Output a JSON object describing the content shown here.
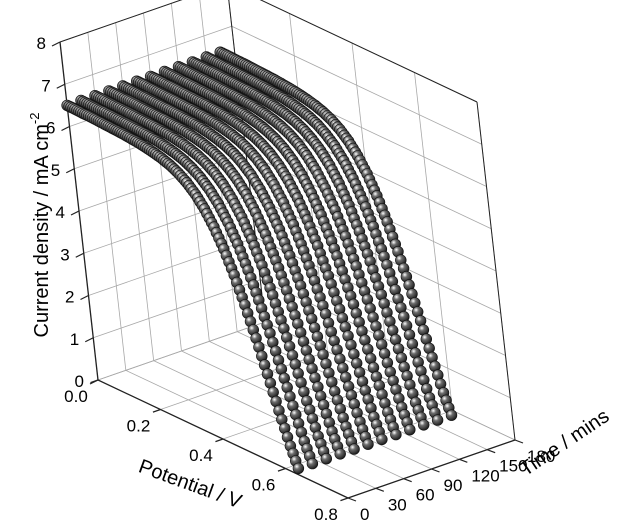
{
  "chart_data": {
    "type": "line",
    "title": "",
    "xlabel": "Potential / V",
    "ylabel": "Time / mins",
    "zlabel": "Current density / mA cm-2",
    "xlabel_parts": [
      "Potential / V"
    ],
    "ylabel_parts": [
      "Time / mins"
    ],
    "zlabel_parts": [
      "Current density / mA cm",
      "-2"
    ],
    "xlim": [
      0.0,
      0.8
    ],
    "ylim": [
      0,
      180
    ],
    "zlim": [
      0,
      8
    ],
    "x_ticks": [
      "0.0",
      "0.2",
      "0.4",
      "0.6",
      "0.8"
    ],
    "y_ticks": [
      "0",
      "30",
      "60",
      "90",
      "120",
      "150",
      "180"
    ],
    "z_ticks": [
      "0",
      "1",
      "2",
      "3",
      "4",
      "5",
      "6",
      "7",
      "8"
    ],
    "grid": true,
    "marker": "sphere",
    "marker_color": "#1a1a1a",
    "series_times": [
      0,
      15,
      30,
      45,
      60,
      75,
      90,
      105,
      120,
      135,
      150,
      165
    ],
    "potential": [
      0.0,
      0.025,
      0.05,
      0.075,
      0.1,
      0.125,
      0.15,
      0.175,
      0.2,
      0.225,
      0.25,
      0.275,
      0.3,
      0.325,
      0.35,
      0.375,
      0.4,
      0.425,
      0.45,
      0.475,
      0.5,
      0.525,
      0.55,
      0.575,
      0.6,
      0.625,
      0.65,
      0.675,
      0.7,
      0.725,
      0.75,
      0.775,
      0.8
    ],
    "current_density": [
      6.5,
      6.5,
      6.49,
      6.49,
      6.48,
      6.47,
      6.46,
      6.45,
      6.43,
      6.41,
      6.38,
      6.34,
      6.29,
      6.22,
      6.12,
      5.98,
      5.79,
      5.53,
      5.19,
      4.76,
      4.23,
      3.61,
      2.91,
      2.15,
      1.37,
      0.62,
      0.0,
      0.0,
      0.0,
      0.0,
      0.0,
      0.0,
      0.0
    ]
  }
}
